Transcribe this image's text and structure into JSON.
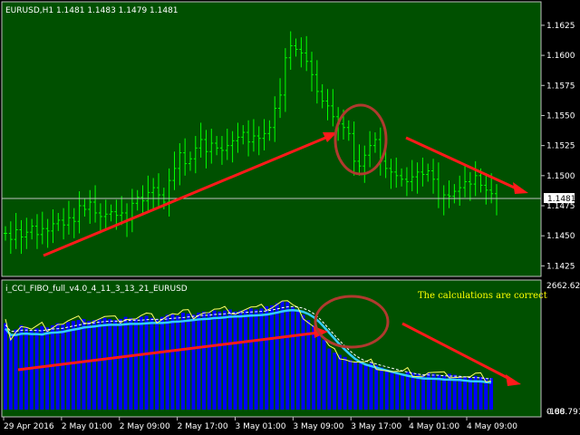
{
  "colors": {
    "background": "#005000",
    "frame": "#c0c0c0",
    "candle": "#00ff00",
    "arrow": "#ff1a1a",
    "ellipse": "#b03a2e",
    "histogram": "#0000ff",
    "signal_line": "#33ccff",
    "fast_line": "#ffff66",
    "dashed_line": "#ffffff",
    "price_tag": "#ffffff",
    "price_tag_text": "#000000"
  },
  "price_panel": {
    "header": "EURUSD,H1  1.1481 1.1483 1.1479 1.1481",
    "y_ticks": [
      "1.1625",
      "1.1600",
      "1.1575",
      "1.1550",
      "1.1525",
      "1.1500",
      "1.1475",
      "1.1450",
      "1.1425"
    ],
    "current_price": "1.1481"
  },
  "indicator_panel": {
    "header": "i_CCI_FIBO_full_v4.0_4_11_3_13_21_EURUSD",
    "note": "The calculations are correct",
    "y_ticks": [
      "2662.621",
      "0.00",
      "-188.791"
    ]
  },
  "x_axis": {
    "labels": [
      "29 Apr 2016",
      "2 May 01:00",
      "2 May 09:00",
      "2 May 17:00",
      "3 May 01:00",
      "3 May 09:00",
      "3 May 17:00",
      "4 May 01:00",
      "4 May 09:00"
    ]
  },
  "chart_data": {
    "type": "bar",
    "symbol": "EURUSD",
    "timeframe": "H1",
    "ohlc_last": {
      "open": 1.1481,
      "high": 1.1483,
      "low": 1.1479,
      "close": 1.1481
    },
    "price_range": [
      1.142,
      1.164
    ],
    "close": [
      1.1452,
      1.1447,
      1.1455,
      1.1449,
      1.1453,
      1.1458,
      1.1451,
      1.1456,
      1.1454,
      1.146,
      1.1463,
      1.1459,
      1.1465,
      1.1462,
      1.1475,
      1.1472,
      1.1478,
      1.1469,
      1.1466,
      1.1468,
      1.147,
      1.1467,
      1.1469,
      1.1463,
      1.1477,
      1.1482,
      1.1479,
      1.1486,
      1.149,
      1.1484,
      1.1478,
      1.1496,
      1.1506,
      1.1519,
      1.151,
      1.1514,
      1.1523,
      1.153,
      1.152,
      1.1527,
      1.1523,
      1.1521,
      1.1525,
      1.1529,
      1.1532,
      1.1536,
      1.1528,
      1.1533,
      1.1531,
      1.1535,
      1.154,
      1.1556,
      1.1567,
      1.1598,
      1.1608,
      1.1605,
      1.1602,
      1.1595,
      1.1584,
      1.157,
      1.1562,
      1.1558,
      1.1549,
      1.1543,
      1.154,
      1.1535,
      1.1512,
      1.1508,
      1.1517,
      1.1525,
      1.153,
      1.1512,
      1.1506,
      1.1503,
      1.15,
      1.1497,
      1.1495,
      1.1499,
      1.1503,
      1.1501,
      1.1504,
      1.1497,
      1.1481,
      1.1484,
      1.1483,
      1.1487,
      1.149,
      1.1495,
      1.1493,
      1.15,
      1.1492,
      1.1488,
      1.1485,
      1.1481
    ],
    "histogram": [
      82,
      70,
      76,
      80,
      78,
      75,
      77,
      79,
      78,
      80,
      82,
      81,
      83,
      84,
      85,
      86,
      84,
      85,
      86,
      87,
      86,
      85,
      86,
      88,
      87,
      86,
      88,
      89,
      87,
      86,
      88,
      90,
      91,
      89,
      92,
      91,
      90,
      92,
      93,
      92,
      94,
      93,
      94,
      95,
      93,
      94,
      95,
      96,
      95,
      96,
      98,
      99,
      101,
      103,
      102,
      97,
      93,
      90,
      85,
      80,
      74,
      66,
      58,
      54,
      52,
      50,
      47,
      45,
      44,
      43,
      44,
      42,
      40,
      38,
      36,
      35,
      34,
      36,
      35,
      34,
      33,
      35,
      34,
      33,
      32,
      34,
      33,
      32,
      31,
      30,
      32,
      31,
      30,
      30
    ],
    "hist_range": [
      0,
      110
    ]
  }
}
